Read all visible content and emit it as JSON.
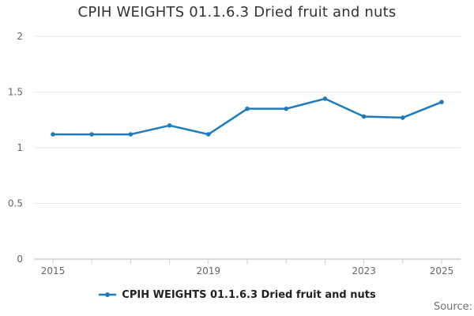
{
  "chart_data": {
    "type": "line",
    "title": "CPIH WEIGHTS 01.1.6.3 Dried fruit and nuts",
    "x": [
      2015,
      2016,
      2017,
      2018,
      2019,
      2020,
      2021,
      2022,
      2023,
      2024,
      2025
    ],
    "series": [
      {
        "name": "CPIH WEIGHTS 01.1.6.3 Dried fruit and nuts",
        "values": [
          1.12,
          1.12,
          1.12,
          1.2,
          1.12,
          1.35,
          1.35,
          1.44,
          1.28,
          1.27,
          1.41
        ]
      }
    ],
    "ylim": [
      0,
      2
    ],
    "yticks": [
      0,
      0.5,
      1,
      1.5,
      2
    ],
    "ytick_labels": [
      "0",
      "0.5",
      "1",
      "1.5",
      "2"
    ],
    "xticks_labeled": [
      2015,
      2019,
      2023,
      2025
    ],
    "grid": "horizontal",
    "legend_position": "bottom",
    "colors": {
      "line": "#1d7dbc",
      "grid": "#e6e6e6",
      "axis_line": "#b5bcc3",
      "tick_mark": "#c7ced6",
      "tick_label": "#666666",
      "title": "#333333",
      "legend_text": "#222222",
      "source_text": "#707070"
    }
  },
  "source": {
    "label": "Source:"
  }
}
